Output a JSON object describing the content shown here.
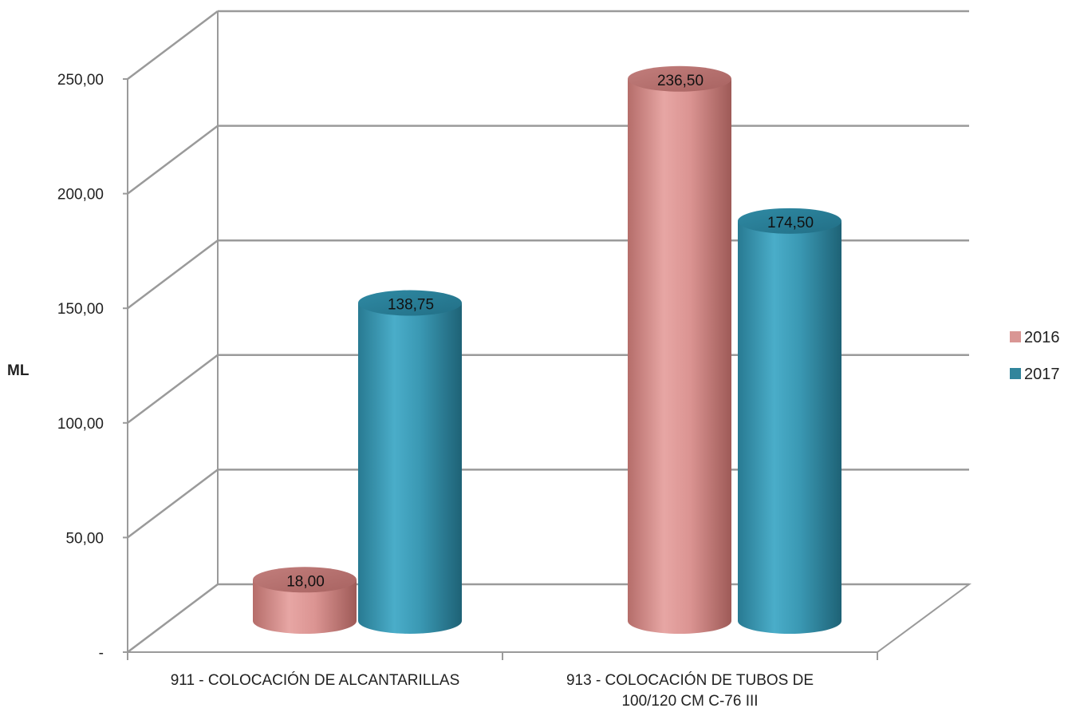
{
  "chart_data": {
    "type": "bar",
    "style": "3d-cylinder",
    "title": "",
    "xlabel": "",
    "ylabel": "ML",
    "ylim": [
      0,
      250
    ],
    "y_tick_step": 50,
    "y_tick_labels": [
      "-",
      "50,00",
      "100,00",
      "150,00",
      "200,00",
      "250,00"
    ],
    "categories": [
      [
        "911 - COLOCACIÓN DE ALCANTARILLAS"
      ],
      [
        "913 - COLOCACIÓN DE TUBOS DE",
        "100/120 CM C-76 III"
      ]
    ],
    "series": [
      {
        "name": "2016",
        "values": [
          18.0,
          236.5
        ],
        "data_labels": [
          "18,00",
          "236,50"
        ],
        "color": "#D99694"
      },
      {
        "name": "2017",
        "values": [
          138.75,
          174.5
        ],
        "data_labels": [
          "138,75",
          "174,50"
        ],
        "color": "#31859C"
      }
    ],
    "grid": true,
    "legend_position": "right"
  }
}
